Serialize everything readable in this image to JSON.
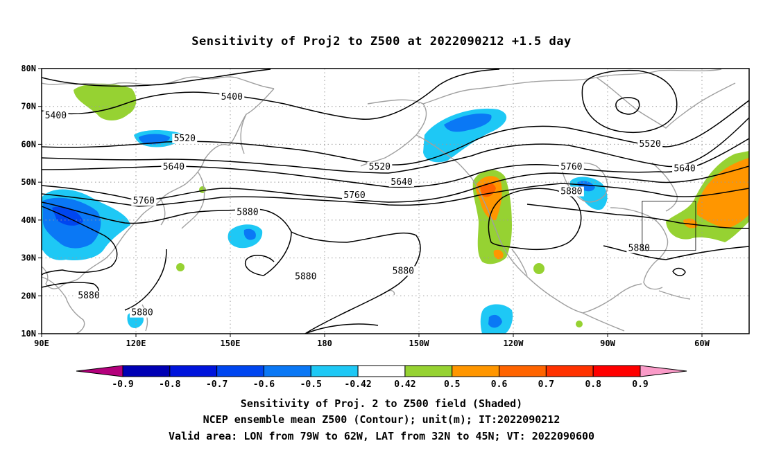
{
  "title": "Sensitivity of Proj2 to Z500 at 2022090212 +1.5 day",
  "lat_labels": [
    {
      "lat": 80,
      "text": "80N"
    },
    {
      "lat": 70,
      "text": "70N"
    },
    {
      "lat": 60,
      "text": "60N"
    },
    {
      "lat": 50,
      "text": "50N"
    },
    {
      "lat": 40,
      "text": "40N"
    },
    {
      "lat": 30,
      "text": "30N"
    },
    {
      "lat": 20,
      "text": "20N"
    },
    {
      "lat": 10,
      "text": "10N"
    }
  ],
  "lon_labels": [
    {
      "lon": 90,
      "text": "90E"
    },
    {
      "lon": 120,
      "text": "120E"
    },
    {
      "lon": 150,
      "text": "150E"
    },
    {
      "lon": 180,
      "text": "180"
    },
    {
      "lon": 210,
      "text": "150W"
    },
    {
      "lon": 240,
      "text": "120W"
    },
    {
      "lon": 270,
      "text": "90W"
    },
    {
      "lon": 300,
      "text": "60W"
    }
  ],
  "map_extent": {
    "lon_min": 90,
    "lon_max": 315,
    "lat_min": 10,
    "lat_max": 80
  },
  "contour_labels": [
    {
      "text": "5400",
      "lon": 150.5,
      "lat": 72.0
    },
    {
      "text": "5400",
      "lon": 94.5,
      "lat": 67.0
    },
    {
      "text": "5520",
      "lon": 135.5,
      "lat": 61.0
    },
    {
      "text": "5520",
      "lon": 197.5,
      "lat": 53.5
    },
    {
      "text": "5520",
      "lon": 283.5,
      "lat": 59.5
    },
    {
      "text": "5640",
      "lon": 132.0,
      "lat": 53.5
    },
    {
      "text": "5640",
      "lon": 204.5,
      "lat": 49.5
    },
    {
      "text": "5640",
      "lon": 294.5,
      "lat": 53.0
    },
    {
      "text": "5760",
      "lon": 122.5,
      "lat": 44.5
    },
    {
      "text": "5760",
      "lon": 189.5,
      "lat": 46.0
    },
    {
      "text": "5760",
      "lon": 258.5,
      "lat": 53.5
    },
    {
      "text": "5880",
      "lon": 155.5,
      "lat": 41.5
    },
    {
      "text": "5880",
      "lon": 258.5,
      "lat": 47.0
    },
    {
      "text": "5880",
      "lon": 280.0,
      "lat": 32.0
    },
    {
      "text": "5880",
      "lon": 174.0,
      "lat": 24.5
    },
    {
      "text": "5880",
      "lon": 205.0,
      "lat": 26.0
    },
    {
      "text": "5880",
      "lon": 105.0,
      "lat": 19.5
    },
    {
      "text": "5880",
      "lon": 122.0,
      "lat": 15.0
    }
  ],
  "valid_area_box": {
    "lon_min": 281,
    "lon_max": 298,
    "lat_min": 32,
    "lat_max": 45
  },
  "colorbar": {
    "colors": [
      "#b4007c",
      "#0000b4",
      "#0014dc",
      "#0046f0",
      "#0a78f5",
      "#1ec8f5",
      "#ffffff",
      "#96d232",
      "#ff9600",
      "#ff6400",
      "#ff3200",
      "#ff0000",
      "#fa9bc8"
    ],
    "labels": [
      "-0.9",
      "-0.8",
      "-0.7",
      "-0.6",
      "-0.5",
      "-0.42",
      "0.42",
      "0.5",
      "0.6",
      "0.7",
      "0.8",
      "0.9"
    ]
  },
  "footer": {
    "line1": "Sensitivity of Proj. 2 to Z500 field (Shaded)",
    "line2": "NCEP ensemble mean Z500 (Contour); unit(m); IT:2022090212",
    "line3": "Valid area: LON from 79W to 62W, LAT from 32N to 45N; VT: 2022090600"
  }
}
